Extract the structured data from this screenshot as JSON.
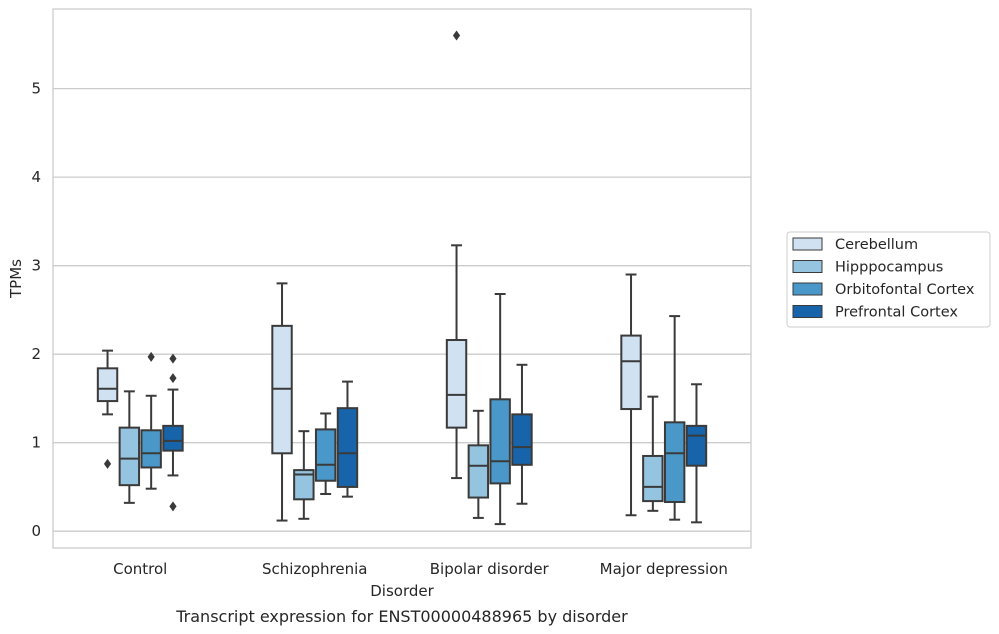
{
  "chart_data": {
    "type": "box",
    "caption": "Transcript expression for ENST00000488965 by disorder",
    "xlabel": "Disorder",
    "ylabel": "TPMs",
    "ylim": [
      -0.19,
      5.9
    ],
    "yticks": [
      0,
      1,
      2,
      3,
      4,
      5
    ],
    "grid": true,
    "legend_position": "right",
    "categories": [
      "Control",
      "Schizophrenia",
      "Bipolar disorder",
      "Major depression"
    ],
    "series": [
      {
        "name": "Cerebellum",
        "color": "#d0e1f2",
        "boxes": [
          {
            "min": 1.32,
            "q1": 1.47,
            "median": 1.61,
            "q3": 1.84,
            "max": 2.04,
            "outliers": [
              0.76
            ]
          },
          {
            "min": 0.12,
            "q1": 0.88,
            "median": 1.61,
            "q3": 2.32,
            "max": 2.8,
            "outliers": []
          },
          {
            "min": 0.6,
            "q1": 1.17,
            "median": 1.54,
            "q3": 2.16,
            "max": 3.23,
            "outliers": [
              5.6
            ]
          },
          {
            "min": 0.18,
            "q1": 1.38,
            "median": 1.92,
            "q3": 2.21,
            "max": 2.9,
            "outliers": []
          }
        ]
      },
      {
        "name": "Hipppocampus",
        "color": "#94c4df",
        "boxes": [
          {
            "min": 0.32,
            "q1": 0.52,
            "median": 0.82,
            "q3": 1.17,
            "max": 1.58,
            "outliers": []
          },
          {
            "min": 0.14,
            "q1": 0.36,
            "median": 0.64,
            "q3": 0.69,
            "max": 1.13,
            "outliers": []
          },
          {
            "min": 0.15,
            "q1": 0.38,
            "median": 0.74,
            "q3": 0.97,
            "max": 1.36,
            "outliers": []
          },
          {
            "min": 0.23,
            "q1": 0.34,
            "median": 0.5,
            "q3": 0.85,
            "max": 1.52,
            "outliers": []
          }
        ]
      },
      {
        "name": "Orbitofontal Cortex",
        "color": "#4a98c9",
        "boxes": [
          {
            "min": 0.48,
            "q1": 0.72,
            "median": 0.88,
            "q3": 1.14,
            "max": 1.53,
            "outliers": [
              1.97
            ]
          },
          {
            "min": 0.42,
            "q1": 0.57,
            "median": 0.75,
            "q3": 1.15,
            "max": 1.33,
            "outliers": []
          },
          {
            "min": 0.08,
            "q1": 0.54,
            "median": 0.79,
            "q3": 1.49,
            "max": 2.68,
            "outliers": []
          },
          {
            "min": 0.13,
            "q1": 0.33,
            "median": 0.88,
            "q3": 1.23,
            "max": 2.43,
            "outliers": []
          }
        ]
      },
      {
        "name": "Prefrontal Cortex",
        "color": "#1764ab",
        "boxes": [
          {
            "min": 0.63,
            "q1": 0.91,
            "median": 1.02,
            "q3": 1.19,
            "max": 1.6,
            "outliers": [
              1.95,
              1.73,
              0.28
            ]
          },
          {
            "min": 0.39,
            "q1": 0.5,
            "median": 0.88,
            "q3": 1.39,
            "max": 1.69,
            "outliers": []
          },
          {
            "min": 0.31,
            "q1": 0.75,
            "median": 0.95,
            "q3": 1.32,
            "max": 1.88,
            "outliers": []
          },
          {
            "min": 0.1,
            "q1": 0.74,
            "median": 1.08,
            "q3": 1.19,
            "max": 1.66,
            "outliers": []
          }
        ]
      }
    ]
  }
}
